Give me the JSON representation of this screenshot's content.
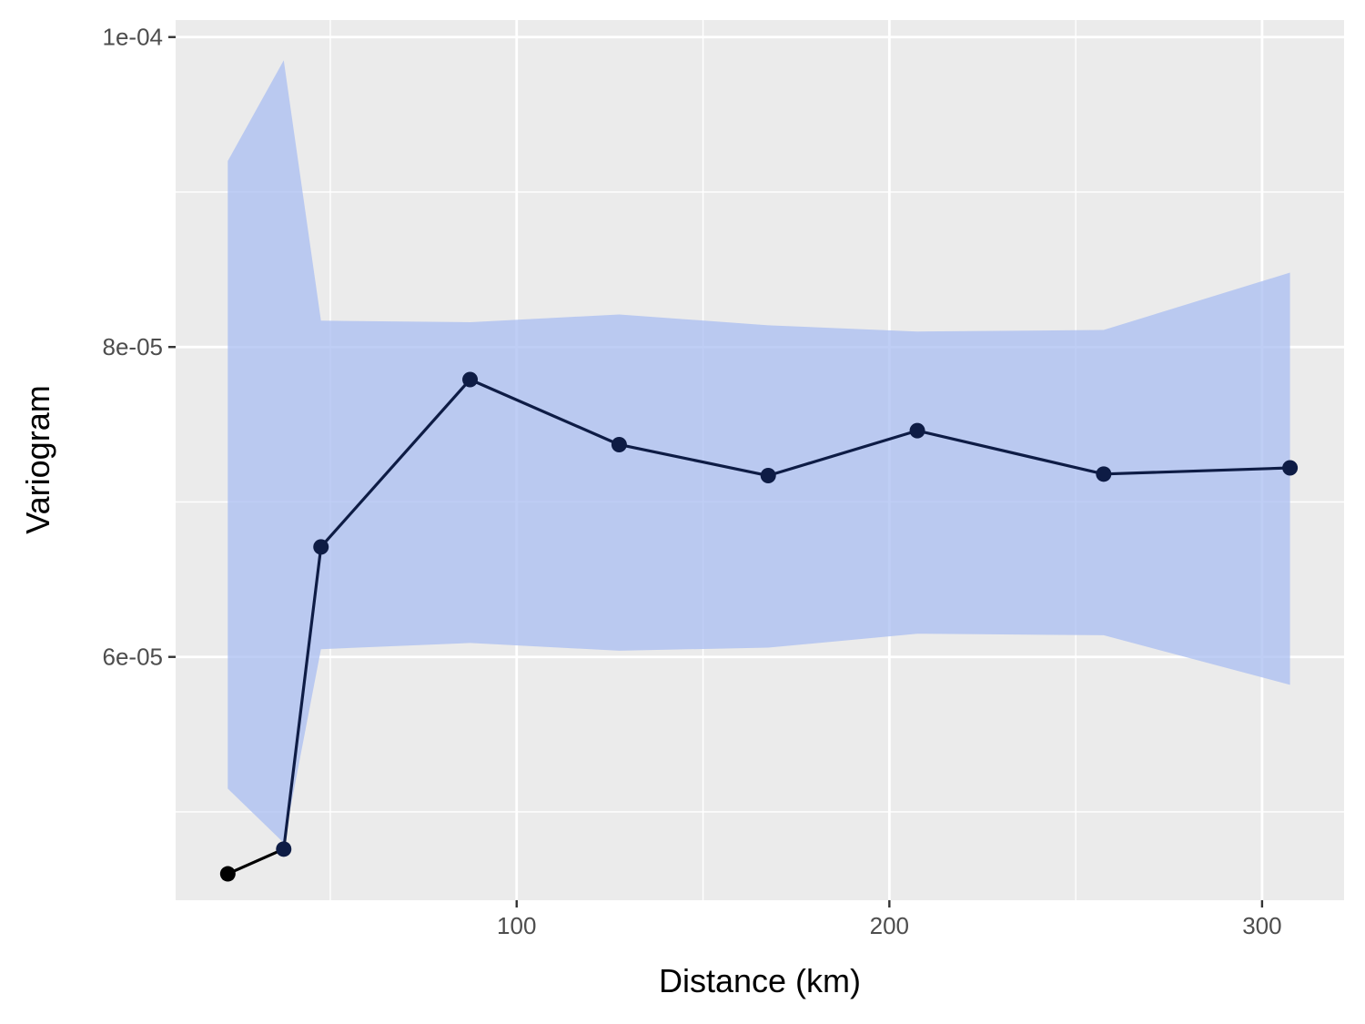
{
  "chart_data": {
    "type": "line",
    "xlabel": "Distance (km)",
    "ylabel": "Variogram",
    "xlim": [
      8.5,
      322
    ],
    "ylim": [
      4.43e-05,
      0.0001011
    ],
    "x_ticks": [
      100,
      200,
      300
    ],
    "x_tick_labels": [
      "100",
      "200",
      "300"
    ],
    "x_minor_ticks": [
      50,
      150,
      250
    ],
    "y_ticks": [
      6e-05,
      8e-05,
      0.0001
    ],
    "y_tick_labels": [
      "6e-05",
      "8e-05",
      "1e-04"
    ],
    "y_minor_ticks": [
      5e-05,
      7e-05,
      9e-05
    ],
    "grid": true,
    "colors": {
      "panel_background": "#ebebeb",
      "grid": "#ffffff",
      "band_fill": "#aabdf2",
      "line": "#0e1c45",
      "first_segment": "#000000",
      "point": "#0e1c45"
    },
    "series": [
      {
        "x": [
          22.5,
          37.5,
          47.5,
          87.5,
          127.5,
          167.5,
          207.5,
          257.5,
          307.5
        ],
        "y": [
          4.6e-05,
          4.76e-05,
          6.71e-05,
          7.79e-05,
          7.37e-05,
          7.17e-05,
          7.46e-05,
          7.18e-05,
          7.22e-05
        ],
        "lower": [
          5.15e-05,
          4.8e-05,
          6.05e-05,
          6.09e-05,
          6.04e-05,
          6.06e-05,
          6.15e-05,
          6.14e-05,
          5.82e-05
        ],
        "upper": [
          9.2e-05,
          9.85e-05,
          8.17e-05,
          8.16e-05,
          8.21e-05,
          8.14e-05,
          8.1e-05,
          8.11e-05,
          8.48e-05
        ]
      }
    ]
  }
}
